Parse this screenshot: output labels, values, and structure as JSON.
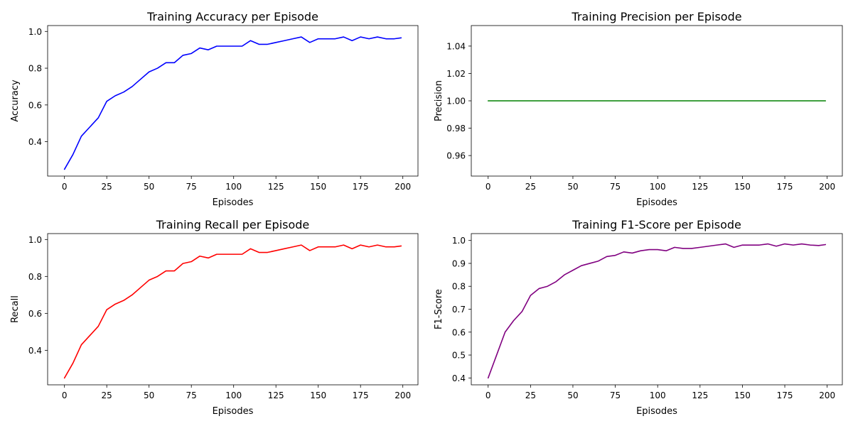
{
  "chart_data": [
    {
      "type": "line",
      "title": "Training Accuracy per Episode",
      "xlabel": "Episodes",
      "ylabel": "Accuracy",
      "xlim": [
        -9.95,
        208.95
      ],
      "ylim": [
        0.213,
        1.032
      ],
      "xticks": [
        "0",
        "25",
        "50",
        "75",
        "100",
        "125",
        "150",
        "175",
        "200"
      ],
      "yticks": [
        "0.4",
        "0.6",
        "0.8",
        "1.0"
      ],
      "x": [
        0,
        5,
        10,
        15,
        20,
        25,
        30,
        35,
        40,
        45,
        50,
        55,
        60,
        65,
        70,
        75,
        80,
        85,
        90,
        95,
        100,
        105,
        110,
        115,
        120,
        125,
        130,
        135,
        140,
        145,
        150,
        155,
        160,
        165,
        170,
        175,
        180,
        185,
        190,
        195,
        199
      ],
      "series": [
        {
          "color": "#0000ff",
          "values": [
            0.25,
            0.33,
            0.43,
            0.48,
            0.53,
            0.62,
            0.65,
            0.67,
            0.7,
            0.74,
            0.78,
            0.8,
            0.83,
            0.83,
            0.87,
            0.88,
            0.91,
            0.9,
            0.92,
            0.92,
            0.92,
            0.92,
            0.95,
            0.93,
            0.93,
            0.94,
            0.95,
            0.96,
            0.97,
            0.94,
            0.96,
            0.96,
            0.96,
            0.97,
            0.95,
            0.97,
            0.96,
            0.97,
            0.96,
            0.96,
            0.965
          ]
        }
      ]
    },
    {
      "type": "line",
      "title": "Training Precision per Episode",
      "xlabel": "Episodes",
      "ylabel": "Precision",
      "xlim": [
        -9.95,
        208.95
      ],
      "ylim": [
        0.945,
        1.055
      ],
      "xticks": [
        "0",
        "25",
        "50",
        "75",
        "100",
        "125",
        "150",
        "175",
        "200"
      ],
      "yticks": [
        "0.96",
        "0.98",
        "1.00",
        "1.02",
        "1.04"
      ],
      "x": [
        0,
        199
      ],
      "series": [
        {
          "color": "#008000",
          "values": [
            1.0,
            1.0
          ]
        }
      ]
    },
    {
      "type": "line",
      "title": "Training Recall per Episode",
      "xlabel": "Episodes",
      "ylabel": "Recall",
      "xlim": [
        -9.95,
        208.95
      ],
      "ylim": [
        0.213,
        1.032
      ],
      "xticks": [
        "0",
        "25",
        "50",
        "75",
        "100",
        "125",
        "150",
        "175",
        "200"
      ],
      "yticks": [
        "0.4",
        "0.6",
        "0.8",
        "1.0"
      ],
      "x": [
        0,
        5,
        10,
        15,
        20,
        25,
        30,
        35,
        40,
        45,
        50,
        55,
        60,
        65,
        70,
        75,
        80,
        85,
        90,
        95,
        100,
        105,
        110,
        115,
        120,
        125,
        130,
        135,
        140,
        145,
        150,
        155,
        160,
        165,
        170,
        175,
        180,
        185,
        190,
        195,
        199
      ],
      "series": [
        {
          "color": "#ff0000",
          "values": [
            0.25,
            0.33,
            0.43,
            0.48,
            0.53,
            0.62,
            0.65,
            0.67,
            0.7,
            0.74,
            0.78,
            0.8,
            0.83,
            0.83,
            0.87,
            0.88,
            0.91,
            0.9,
            0.92,
            0.92,
            0.92,
            0.92,
            0.95,
            0.93,
            0.93,
            0.94,
            0.95,
            0.96,
            0.97,
            0.94,
            0.96,
            0.96,
            0.96,
            0.97,
            0.95,
            0.97,
            0.96,
            0.97,
            0.96,
            0.96,
            0.965
          ]
        }
      ]
    },
    {
      "type": "line",
      "title": "Training F1-Score per Episode",
      "xlabel": "Episodes",
      "ylabel": "F1-Score",
      "xlim": [
        -9.95,
        208.95
      ],
      "ylim": [
        0.37,
        1.03
      ],
      "xticks": [
        "0",
        "25",
        "50",
        "75",
        "100",
        "125",
        "150",
        "175",
        "200"
      ],
      "yticks": [
        "0.4",
        "0.5",
        "0.6",
        "0.7",
        "0.8",
        "0.9",
        "1.0"
      ],
      "x": [
        0,
        5,
        10,
        15,
        20,
        25,
        30,
        35,
        40,
        45,
        50,
        55,
        60,
        65,
        70,
        75,
        80,
        85,
        90,
        95,
        100,
        105,
        110,
        115,
        120,
        125,
        130,
        135,
        140,
        145,
        150,
        155,
        160,
        165,
        170,
        175,
        180,
        185,
        190,
        195,
        199
      ],
      "series": [
        {
          "color": "#800080",
          "values": [
            0.4,
            0.5,
            0.6,
            0.65,
            0.69,
            0.76,
            0.79,
            0.8,
            0.82,
            0.85,
            0.87,
            0.89,
            0.9,
            0.91,
            0.93,
            0.935,
            0.95,
            0.945,
            0.955,
            0.96,
            0.96,
            0.955,
            0.97,
            0.965,
            0.965,
            0.97,
            0.975,
            0.98,
            0.985,
            0.97,
            0.98,
            0.98,
            0.98,
            0.985,
            0.975,
            0.985,
            0.98,
            0.985,
            0.98,
            0.978,
            0.982
          ]
        }
      ]
    }
  ]
}
